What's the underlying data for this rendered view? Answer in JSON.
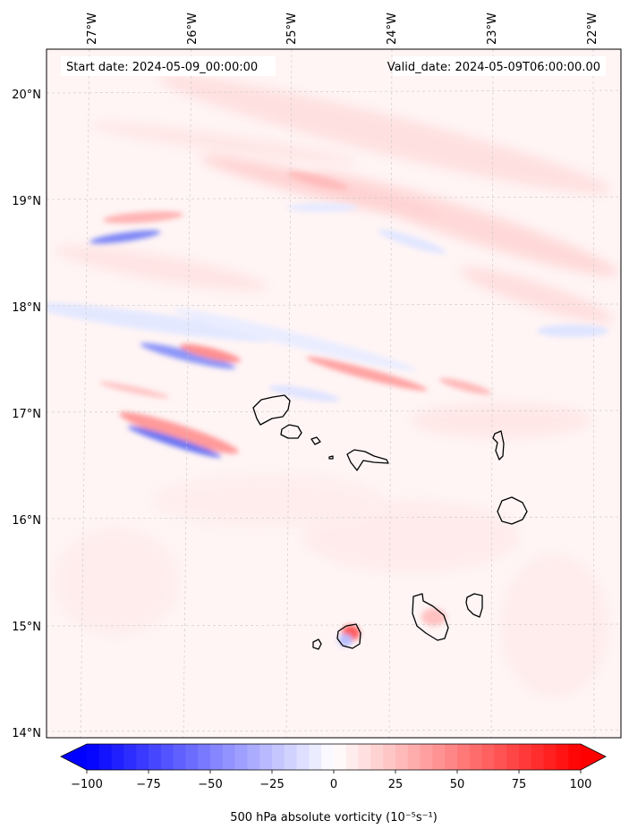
{
  "map": {
    "start_label": "Start date: 2024-05-09_00:00:00",
    "valid_label": "Valid_date: 2024-05-09T06:00:00.00",
    "lon_ticks": [
      "27°W",
      "26°W",
      "25°W",
      "24°W",
      "23°W",
      "22°W"
    ],
    "lat_ticks": [
      "20°N",
      "19°N",
      "18°N",
      "17°N",
      "16°N",
      "15°N",
      "14°N"
    ],
    "extent": {
      "lon_min": -27.35,
      "lon_max": -21.75,
      "lat_min": 13.95,
      "lat_max": 20.4
    },
    "grid": true,
    "colormap": "bwr",
    "islands": [
      "Santo Antão",
      "São Vicente",
      "Santa Luzia",
      "São Nicolau",
      "Sal",
      "Boa Vista",
      "Maio",
      "Santiago",
      "Fogo",
      "Brava"
    ]
  },
  "colorbar": {
    "ticks": [
      "−100",
      "−75",
      "−50",
      "−25",
      "0",
      "25",
      "50",
      "75",
      "100"
    ],
    "min": -100,
    "max": 100,
    "extend": "both",
    "label": "500 hPa absolute vorticity (10⁻⁵s⁻¹)",
    "colors": {
      "negative": "#0000ff",
      "zero": "#ffffff",
      "positive": "#ff0000"
    }
  }
}
